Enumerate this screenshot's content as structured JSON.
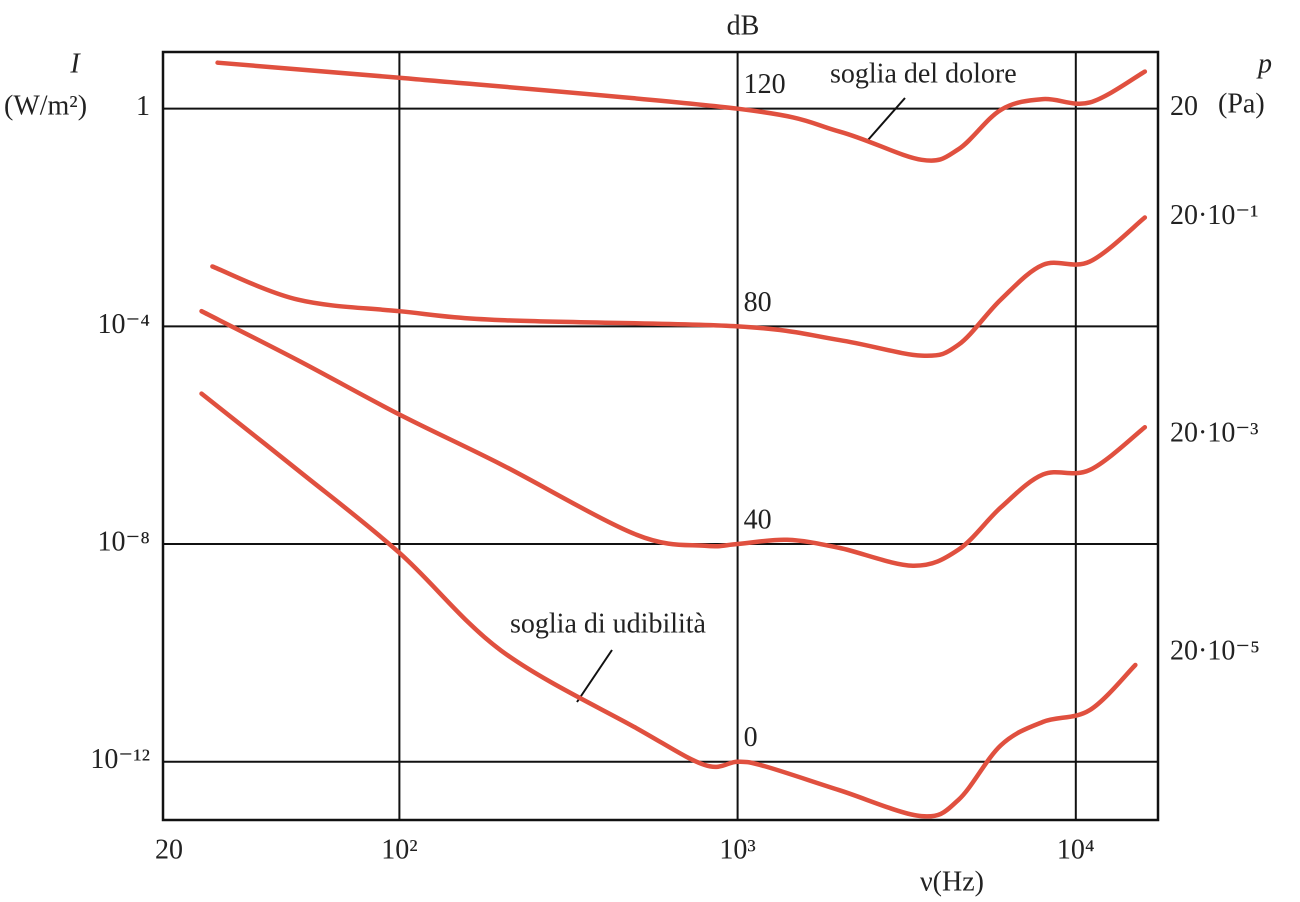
{
  "chart_data": {
    "type": "line",
    "top_axis_label": "dB",
    "y_axis_symbol": "I",
    "y_axis_unit": "(W/m²)",
    "y2_axis_symbol": "p",
    "y2_axis_unit": "(Pa)",
    "x_axis_label": "ν(Hz)",
    "xscale": "log",
    "yscale": "log",
    "y2scale": "log",
    "grid": true,
    "xlim": [
      20,
      17500
    ],
    "xticks": [
      20,
      {
        "value": 100,
        "label": "10²"
      },
      {
        "value": 1000,
        "label": "10³"
      },
      {
        "value": 10000,
        "label": "10⁴"
      }
    ],
    "ylim": [
      8.5e-14,
      11
    ],
    "yticks": [
      1,
      {
        "value": 0.0001,
        "label": "10⁻⁴"
      },
      {
        "value": 1e-08,
        "label": "10⁻⁸"
      },
      {
        "value": 1e-12,
        "label": "10⁻¹²"
      }
    ],
    "y2lim": [
      5.83e-06,
      66.3
    ],
    "y2ticks": [
      20,
      {
        "value": 2,
        "label": "20·10⁻¹"
      },
      {
        "value": 0.02,
        "label": "20·10⁻³"
      },
      {
        "value": 0.0002,
        "label": "20·10⁻⁵"
      }
    ],
    "series": [
      {
        "name": "120",
        "color": "#e0503f",
        "x": [
          29,
          100,
          1000,
          2000,
          3500,
          4500,
          6000,
          8000,
          11000,
          16000
        ],
        "values": [
          7,
          3.7,
          1,
          0.38,
          0.115,
          0.18,
          0.95,
          1.5,
          1.3,
          4.8
        ]
      },
      {
        "name": "80",
        "color": "#e0503f",
        "x": [
          28,
          50,
          100,
          200,
          1000,
          2000,
          3500,
          4500,
          6000,
          8000,
          11000,
          16000
        ],
        "values": [
          0.00126,
          0.00031,
          0.00019,
          0.00013,
          0.0001,
          5.6e-05,
          2.9e-05,
          4.6e-05,
          0.00031,
          0.00135,
          0.00155,
          0.01
        ]
      },
      {
        "name": "40",
        "color": "#e0503f",
        "x": [
          26,
          50,
          100,
          200,
          500,
          800,
          1000,
          1400,
          2000,
          3300,
          4500,
          6000,
          8000,
          11000,
          16000
        ],
        "values": [
          0.00019,
          2.4e-05,
          2.4e-06,
          2.9e-07,
          1.5e-08,
          9.3e-09,
          1e-08,
          1.2e-08,
          8.5e-09,
          4e-09,
          7.9e-09,
          4.7e-08,
          1.9e-07,
          2.3e-07,
          1.4e-06
        ]
      },
      {
        "name": "0",
        "color": "#e0503f",
        "x": [
          26,
          50,
          100,
          200,
          500,
          800,
          1000,
          1200,
          2000,
          3500,
          4500,
          6000,
          8000,
          11000,
          15000
        ],
        "values": [
          5.8e-06,
          2.3e-07,
          6.9e-09,
          1.1e-10,
          4.2e-12,
          8.7e-13,
          1e-12,
          8.3e-13,
          3e-13,
          1e-13,
          2e-13,
          2e-12,
          5.4e-12,
          8.9e-12,
          6e-11
        ]
      }
    ],
    "annotations": [
      {
        "text": "soglia del dolore"
      },
      {
        "text": "soglia di udibilità"
      }
    ]
  }
}
